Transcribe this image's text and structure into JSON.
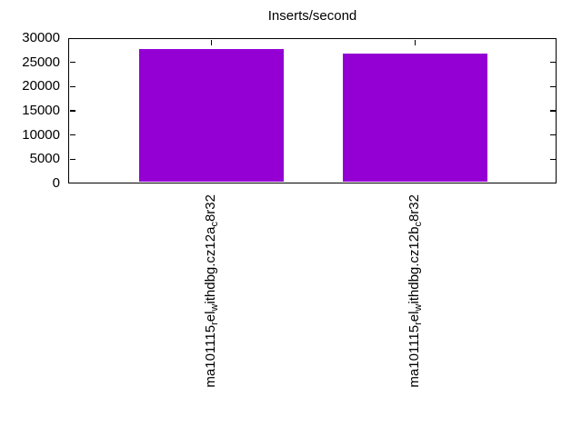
{
  "chart_data": {
    "type": "bar",
    "title": "Inserts/second",
    "categories": [
      "ma101115_rel_withdbg.cz12a_c8r32",
      "ma101115_rel_withdbg.cz12b_c8r32"
    ],
    "category_display_segments": [
      [
        {
          "t": "ma101115"
        },
        {
          "t": "r",
          "sub": true
        },
        {
          "t": "el"
        },
        {
          "t": "w",
          "sub": true
        },
        {
          "t": "ithdbg.cz12a"
        },
        {
          "t": "c",
          "sub": true
        },
        {
          "t": "8r32"
        }
      ],
      [
        {
          "t": "ma101115"
        },
        {
          "t": "r",
          "sub": true
        },
        {
          "t": "el"
        },
        {
          "t": "w",
          "sub": true
        },
        {
          "t": "ithdbg.cz12b"
        },
        {
          "t": "c",
          "sub": true
        },
        {
          "t": "8r32"
        }
      ]
    ],
    "values": [
      27700,
      26900
    ],
    "ylim": [
      0,
      30000
    ],
    "ytick_interval": 5000,
    "ytick_labels": [
      "0",
      "5000",
      "10000",
      "15000",
      "20000",
      "25000",
      "30000"
    ],
    "xlabel": "",
    "ylabel": "",
    "legend": "none",
    "grid": false,
    "bar_color": "#9400d3",
    "axis_color": "#000000",
    "background_color": "#ffffff"
  }
}
